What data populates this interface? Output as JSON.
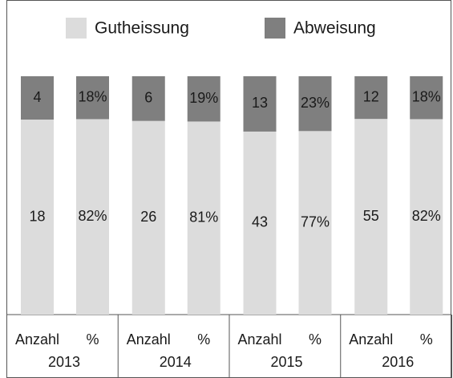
{
  "chart_data": {
    "type": "bar",
    "stacked": "percent",
    "groups": [
      "2013",
      "2014",
      "2015",
      "2016"
    ],
    "categories": [
      "Anzahl",
      "%",
      "Anzahl",
      "%",
      "Anzahl",
      "%",
      "Anzahl",
      "%"
    ],
    "series": [
      {
        "name": "Gutheissung",
        "color": "#dcdcdc",
        "values": [
          18,
          82,
          26,
          81,
          43,
          77,
          55,
          82
        ],
        "value_labels": [
          "18",
          "82%",
          "26",
          "81%",
          "43",
          "77%",
          "55",
          "82%"
        ]
      },
      {
        "name": "Abweisung",
        "color": "#7f7f7f",
        "values": [
          4,
          18,
          6,
          19,
          13,
          23,
          12,
          18
        ],
        "value_labels": [
          "4",
          "18%",
          "6",
          "19%",
          "13",
          "23%",
          "12",
          "18%"
        ]
      }
    ],
    "legend": "top"
  }
}
